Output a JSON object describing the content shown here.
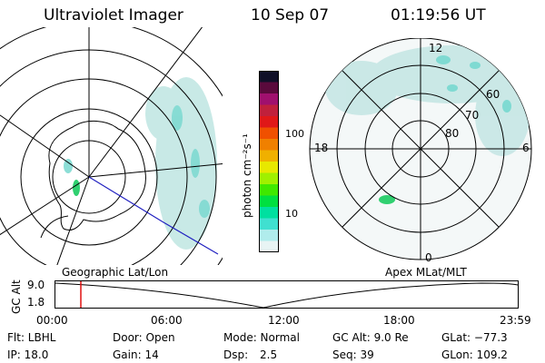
{
  "header": {
    "instrument": "Ultraviolet Imager",
    "date": "10 Sep 07",
    "time": "01:19:56 UT"
  },
  "colorbar": {
    "label": "photon cm⁻²s⁻¹",
    "ticks": [
      "100",
      "10"
    ],
    "colors": [
      "#101028",
      "#5a0a3c",
      "#a0106e",
      "#c0203c",
      "#e01818",
      "#f05000",
      "#f08000",
      "#f0b000",
      "#e8e800",
      "#a0f000",
      "#40e800",
      "#00e040",
      "#00e0a0",
      "#40e0d0",
      "#b0ecec",
      "#e8f4f4"
    ]
  },
  "left_map": {
    "label": "Geographic Lat/Lon"
  },
  "right_map": {
    "label": "Apex MLat/MLT",
    "lat_labels": [
      "60",
      "70",
      "80"
    ],
    "mlt_labels": [
      "12",
      "6",
      "18",
      "0"
    ]
  },
  "timeline": {
    "ylabel": "GC Alt",
    "y_ticks": [
      "9.0",
      "1.8"
    ],
    "x_ticks": [
      "00:00",
      "06:00",
      "12:00",
      "18:00",
      "23:59"
    ],
    "current_time_fraction": 0.055,
    "marker_color": "#e01010"
  },
  "info": {
    "filter": "Flt: LBHL",
    "ip": "IP: 18.0",
    "door": "Door: Open",
    "gain": "Gain: 14",
    "mode": "Mode: Normal",
    "dsp_label": "Dsp:",
    "dsp_value": "2.5",
    "gc_alt": "GC Alt: 9.0 Re",
    "seq": "Seq: 39",
    "glat": "GLat: −77.3",
    "glon": "GLon: 109.2"
  }
}
